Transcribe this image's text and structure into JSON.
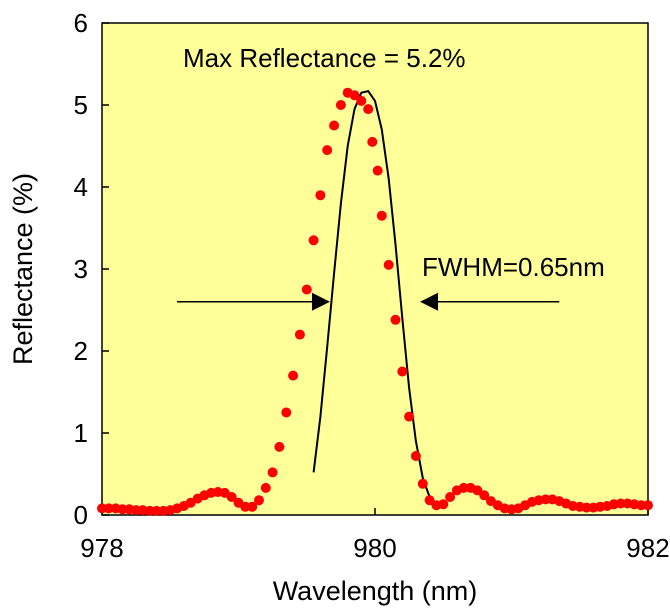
{
  "chart_data": {
    "type": "scatter",
    "xlabel": "Wavelength (nm)",
    "ylabel": "Reflectance (%)",
    "xlim": [
      978,
      982
    ],
    "ylim": [
      0,
      6
    ],
    "x_ticks": [
      "978",
      "980",
      "982"
    ],
    "y_ticks": [
      "0",
      "1",
      "2",
      "3",
      "4",
      "5",
      "6"
    ],
    "grid": false,
    "legend": "none",
    "colors": {
      "plot_background": "#FFFF99",
      "measured_points": "#FF0000",
      "fit_line": "#000000"
    },
    "annotations": {
      "max_reflectance": "Max Reflectance = 5.2%",
      "fwhm": "FWHM=0.65nm"
    },
    "fwhm_markers": {
      "y": 2.6,
      "left_x": 979.67,
      "right_x": 980.33,
      "left_tail_start_x": 978.55,
      "right_tail_end_x": 981.35
    },
    "series": [
      {
        "kind": "points",
        "x": [
          978.0,
          978.05,
          978.1,
          978.15,
          978.2,
          978.25,
          978.3,
          978.35,
          978.4,
          978.45,
          978.5,
          978.55,
          978.6,
          978.65,
          978.7,
          978.75,
          978.8,
          978.85,
          978.9,
          978.95,
          979.0,
          979.05,
          979.1,
          979.15,
          979.2,
          979.25,
          979.3,
          979.35,
          979.4,
          979.45,
          979.5,
          979.55,
          979.6,
          979.65,
          979.7,
          979.75,
          979.8,
          979.85,
          979.9,
          979.95,
          979.98,
          980.02,
          980.05,
          980.1,
          980.15,
          980.2,
          980.25,
          980.3,
          980.35,
          980.4,
          980.45,
          980.5,
          980.55,
          980.6,
          980.65,
          980.7,
          980.75,
          980.8,
          980.85,
          980.9,
          980.95,
          981.0,
          981.05,
          981.1,
          981.15,
          981.2,
          981.25,
          981.3,
          981.35,
          981.4,
          981.45,
          981.5,
          981.55,
          981.6,
          981.65,
          981.7,
          981.75,
          981.8,
          981.85,
          981.9,
          981.95,
          982.0
        ],
        "y": [
          0.08,
          0.08,
          0.08,
          0.07,
          0.07,
          0.06,
          0.06,
          0.05,
          0.05,
          0.05,
          0.06,
          0.08,
          0.11,
          0.15,
          0.2,
          0.24,
          0.27,
          0.28,
          0.27,
          0.22,
          0.15,
          0.1,
          0.1,
          0.18,
          0.33,
          0.52,
          0.83,
          1.25,
          1.7,
          2.2,
          2.75,
          3.35,
          3.9,
          4.45,
          4.75,
          5.0,
          5.15,
          5.12,
          5.05,
          4.95,
          4.55,
          4.2,
          3.65,
          3.05,
          2.38,
          1.75,
          1.2,
          0.72,
          0.38,
          0.18,
          0.12,
          0.13,
          0.22,
          0.3,
          0.33,
          0.33,
          0.3,
          0.24,
          0.17,
          0.12,
          0.08,
          0.07,
          0.08,
          0.12,
          0.16,
          0.18,
          0.19,
          0.19,
          0.17,
          0.14,
          0.11,
          0.1,
          0.09,
          0.09,
          0.1,
          0.11,
          0.13,
          0.14,
          0.14,
          0.13,
          0.12,
          0.12
        ]
      },
      {
        "kind": "line",
        "x": [
          979.55,
          979.6,
          979.65,
          979.7,
          979.75,
          979.8,
          979.85,
          979.9,
          979.95,
          980.0,
          980.05,
          980.1,
          980.15,
          980.2,
          980.25,
          980.3,
          980.35,
          980.4,
          980.45
        ],
        "y": [
          0.52,
          1.2,
          2.05,
          2.95,
          3.8,
          4.5,
          4.95,
          5.15,
          5.17,
          5.05,
          4.7,
          4.1,
          3.3,
          2.4,
          1.55,
          0.9,
          0.45,
          0.22,
          0.12
        ]
      }
    ]
  }
}
